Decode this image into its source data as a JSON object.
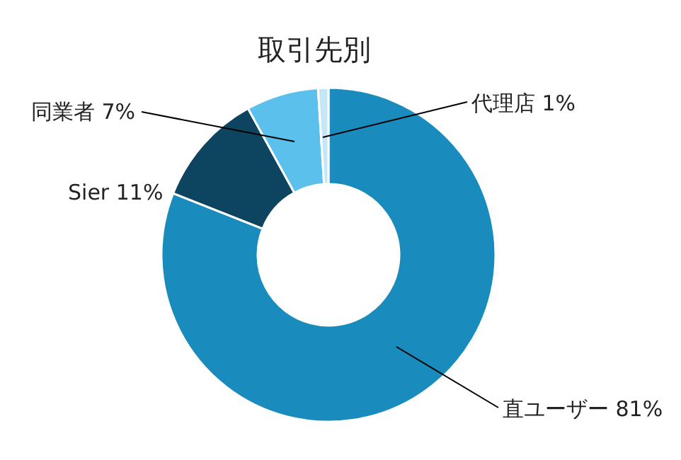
{
  "chart_data": {
    "type": "donut",
    "title": "取引先別",
    "categories": [
      "直ユーザー",
      "Sier",
      "同業者",
      "代理店"
    ],
    "values": [
      81,
      11,
      7,
      1
    ],
    "colors": [
      "#1a8bbd",
      "#0d4560",
      "#5bc0eb",
      "#c5e6f5"
    ],
    "value_labels": [
      "81%",
      "11%",
      "7%",
      "1%"
    ]
  }
}
